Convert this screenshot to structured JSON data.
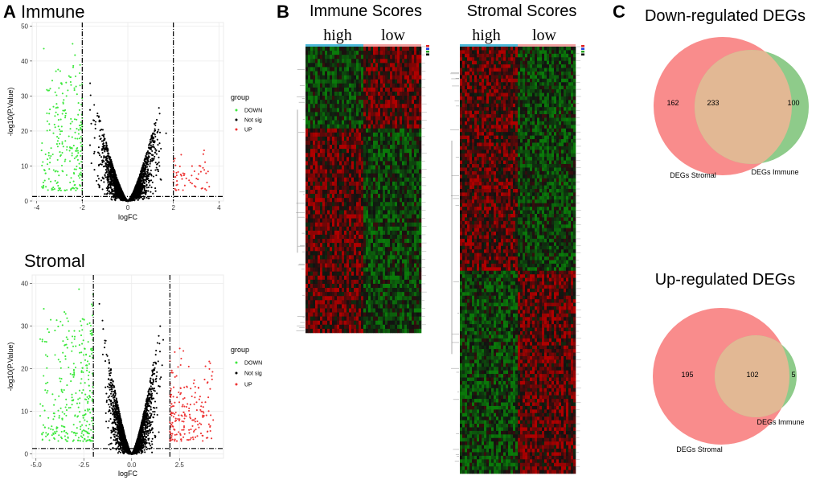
{
  "panels": {
    "a": "A",
    "b": "B",
    "c": "C"
  },
  "colors": {
    "down": "#3ee83e",
    "notsig": "#000000",
    "up": "#ee3333",
    "heat_low": "#0a7a0a",
    "heat_high": "#b00000",
    "venn_stromal": "#f98c8c",
    "venn_immune": "#8ecb8a",
    "venn_overlap": "#e2b894",
    "bar_high": "#4cb8d8",
    "bar_low": "#f0a0a0"
  },
  "chart_data": [
    {
      "id": "volcano-immune",
      "type": "scatter",
      "title": "Immune",
      "xlabel": "logFC",
      "ylabel": "-log10(P.Value)",
      "xlim": [
        -4.2,
        4.2
      ],
      "ylim": [
        0,
        51
      ],
      "xticks": [
        -4,
        -2,
        0,
        2,
        4
      ],
      "yticks": [
        0,
        10,
        20,
        30,
        40,
        50
      ],
      "xtick_labels": [
        "-4",
        "-2",
        "0",
        "2",
        "4"
      ],
      "ytick_labels": [
        "0",
        "10",
        "20",
        "30",
        "40",
        "50"
      ],
      "logfc_cutoffs": [
        -2,
        2
      ],
      "p_cutoff": 1.3,
      "legend": {
        "title": "group",
        "entries": [
          "DOWN",
          "Not sig",
          "UP"
        ]
      },
      "series": [
        {
          "name": "DOWN",
          "n": 240,
          "x_range": [
            -3.8,
            -2.0
          ],
          "y_max": 48
        },
        {
          "name": "Not sig",
          "n": 2600,
          "x_range": [
            -2.0,
            2.0
          ],
          "y_max": 44
        },
        {
          "name": "UP",
          "n": 55,
          "x_range": [
            2.0,
            3.6
          ],
          "y_max": 15
        }
      ],
      "grid": true
    },
    {
      "id": "volcano-stromal",
      "type": "scatter",
      "title": "Stromal",
      "xlabel": "logFC",
      "ylabel": "-log10(P.Value)",
      "xlim": [
        -5.2,
        4.8
      ],
      "ylim": [
        -1,
        42
      ],
      "xticks": [
        -5,
        -2.5,
        0,
        2.5
      ],
      "yticks": [
        0,
        10,
        20,
        30,
        40
      ],
      "xtick_labels": [
        "-5.0",
        "-2.5",
        "0.0",
        "2.5"
      ],
      "ytick_labels": [
        "0",
        "10",
        "20",
        "30",
        "40"
      ],
      "logfc_cutoffs": [
        -2,
        2
      ],
      "p_cutoff": 1.3,
      "legend": {
        "title": "group",
        "entries": [
          "DOWN",
          "Not sig",
          "UP"
        ]
      },
      "series": [
        {
          "name": "DOWN",
          "n": 320,
          "x_range": [
            -4.8,
            -2.0
          ],
          "y_max": 40
        },
        {
          "name": "Not sig",
          "n": 2800,
          "x_range": [
            -2.0,
            2.0
          ],
          "y_max": 38
        },
        {
          "name": "UP",
          "n": 200,
          "x_range": [
            2.0,
            4.3
          ],
          "y_max": 26
        }
      ],
      "grid": true
    },
    {
      "id": "heatmap-immune",
      "type": "heatmap",
      "title": "Immune Scores",
      "groups": [
        "high",
        "low"
      ],
      "rows": 70,
      "cols": 48,
      "row_blocks": [
        {
          "rows": 20,
          "high": "low",
          "low": "high"
        },
        {
          "rows": 50,
          "high": "high",
          "low": "low"
        }
      ]
    },
    {
      "id": "heatmap-stromal",
      "type": "heatmap",
      "title": "Stromal Scores",
      "groups": [
        "high",
        "low"
      ],
      "rows": 120,
      "cols": 48,
      "row_blocks": [
        {
          "rows": 63,
          "high": "high",
          "low": "low"
        },
        {
          "rows": 57,
          "high": "low",
          "low": "high"
        }
      ]
    },
    {
      "id": "venn-down",
      "type": "venn",
      "title": "Down-regulated DEGs",
      "sets": [
        "DEGs Stromal",
        "DEGs Immune"
      ],
      "only_stromal": 162,
      "overlap": 233,
      "only_immune": 100
    },
    {
      "id": "venn-up",
      "type": "venn",
      "title": "Up-regulated DEGs",
      "sets": [
        "DEGs Stromal",
        "DEGs Immune"
      ],
      "only_stromal": 195,
      "overlap": 102,
      "only_immune": 5
    }
  ]
}
